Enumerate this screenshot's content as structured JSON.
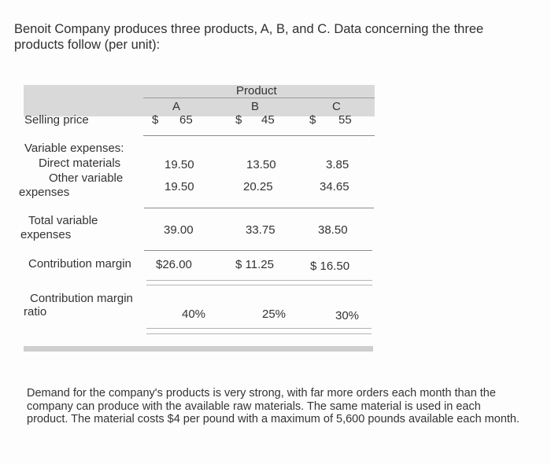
{
  "intro": "Benoit Company produces three products, A, B, and C. Data concerning the three products follow (per unit):",
  "table": {
    "group_header": "Product",
    "columns": [
      "A",
      "B",
      "C"
    ],
    "rows": {
      "selling_price": {
        "label": "Selling price",
        "values": [
          "$",
          "65",
          "$",
          "45",
          "$",
          "55"
        ]
      },
      "variable_expenses_header": "Variable expenses:",
      "direct_materials": {
        "label": "Direct materials",
        "values": [
          "19.50",
          "13.50",
          "3.85"
        ]
      },
      "other_variable": {
        "label_1": "Other variable",
        "label_2": "expenses",
        "values": [
          "19.50",
          "20.25",
          "34.65"
        ]
      },
      "total_variable": {
        "label_1": "Total variable",
        "label_2": "expenses",
        "values": [
          "39.00",
          "33.75",
          "38.50"
        ]
      },
      "contribution_margin": {
        "label": "Contribution margin",
        "values": [
          "$26.00",
          "$ 11.25",
          "$ 16.50"
        ]
      },
      "cm_ratio": {
        "label_1": "Contribution margin",
        "label_2": "ratio",
        "values": [
          "40%",
          "25%",
          "30%"
        ]
      }
    }
  },
  "footer": "Demand for the company's products is very strong, with far more orders each month than the company can produce with the available raw materials. The same material is used in each product. The material costs $4 per pound with a maximum of 5,600 pounds available each month.",
  "colors": {
    "band": "#d9d9d9",
    "text": "#333333"
  }
}
